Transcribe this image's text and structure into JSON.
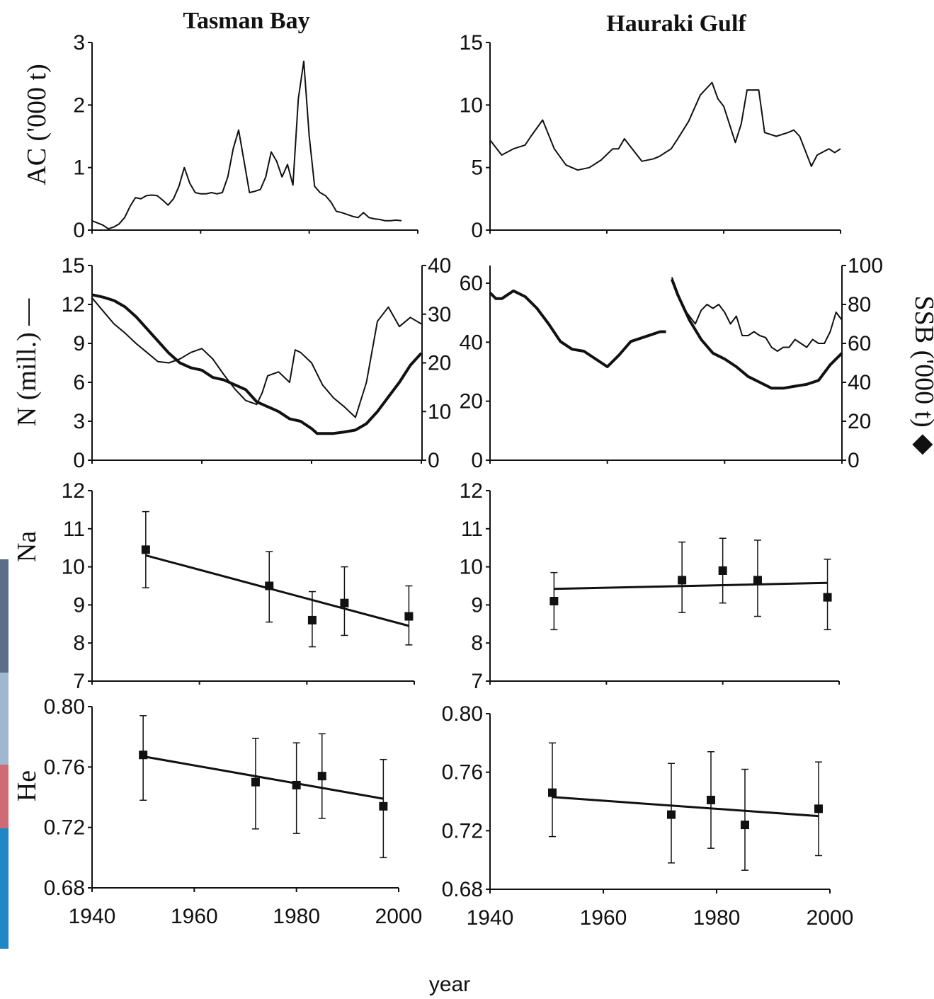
{
  "figure": {
    "titles": [
      "Tasman Bay",
      "Hauraki Gulf"
    ],
    "xlabel": "year",
    "ylabels": {
      "ac": "AC ('000 t)",
      "n": "N (mill.) —",
      "ssb": "SSB ('000 t) ◆",
      "na": "Na",
      "he": "He"
    },
    "decor": {
      "left_strip_colors": [
        "#5b6d88",
        "#9fb7d1",
        "#d06a74",
        "#1f86c7"
      ]
    }
  },
  "chart_data": [
    {
      "id": "tb_ac",
      "type": "line",
      "panel": "Tasman Bay",
      "ylabel": "AC ('000 t)",
      "ylim": [
        0,
        3
      ],
      "yticks": [
        0,
        1,
        2,
        3
      ],
      "xlim": [
        1940,
        2000
      ],
      "series": [
        {
          "x": [
            1940,
            1942,
            1943,
            1944,
            1945,
            1946,
            1947,
            1948,
            1949,
            1950,
            1951,
            1952,
            1953,
            1954,
            1955,
            1956,
            1957,
            1958,
            1959,
            1960,
            1961,
            1962,
            1963,
            1964,
            1965,
            1966,
            1967,
            1968,
            1969,
            1970,
            1971,
            1972,
            1973,
            1974,
            1975,
            1976,
            1977,
            1978,
            1979,
            1980,
            1981,
            1982,
            1983,
            1984,
            1985,
            1986,
            1987,
            1988,
            1989,
            1990,
            1991,
            1992,
            1993,
            1994,
            1995,
            1996,
            1997
          ],
          "y": [
            0.15,
            0.08,
            0.02,
            0.05,
            0.1,
            0.2,
            0.38,
            0.52,
            0.5,
            0.55,
            0.56,
            0.55,
            0.48,
            0.4,
            0.5,
            0.7,
            1.0,
            0.75,
            0.6,
            0.58,
            0.58,
            0.6,
            0.58,
            0.6,
            0.85,
            1.3,
            1.6,
            1.1,
            0.6,
            0.62,
            0.65,
            0.85,
            1.25,
            1.1,
            0.85,
            1.05,
            0.72,
            2.1,
            2.7,
            1.5,
            0.7,
            0.6,
            0.55,
            0.45,
            0.3,
            0.28,
            0.25,
            0.22,
            0.2,
            0.28,
            0.2,
            0.18,
            0.17,
            0.15,
            0.15,
            0.16,
            0.15
          ]
        }
      ]
    },
    {
      "id": "hg_ac",
      "type": "line",
      "panel": "Hauraki Gulf",
      "ylim": [
        0,
        15
      ],
      "yticks": [
        0,
        5,
        10,
        15
      ],
      "xlim": [
        1940,
        2000
      ],
      "series": [
        {
          "x": [
            1940,
            1942,
            1944,
            1946,
            1947,
            1949,
            1951,
            1953,
            1955,
            1957,
            1959,
            1961,
            1962,
            1963,
            1964,
            1966,
            1968,
            1969,
            1970,
            1971,
            1972,
            1974,
            1976,
            1978,
            1979,
            1980,
            1982,
            1983,
            1984,
            1986,
            1987,
            1989,
            1991,
            1992,
            1993,
            1995,
            1996,
            1998,
            1999,
            2000
          ],
          "y": [
            7.2,
            6.0,
            6.5,
            6.8,
            7.5,
            8.8,
            6.5,
            5.2,
            4.8,
            5.0,
            5.6,
            6.5,
            6.5,
            7.3,
            6.7,
            5.5,
            5.7,
            5.9,
            6.2,
            6.5,
            7.2,
            8.7,
            10.8,
            11.8,
            10.5,
            9.9,
            7.0,
            8.5,
            11.2,
            11.2,
            7.8,
            7.5,
            7.8,
            8.0,
            7.5,
            5.1,
            6.0,
            6.5,
            6.2,
            6.5
          ]
        }
      ]
    },
    {
      "id": "tb_n_ssb",
      "type": "line",
      "panel": "Tasman Bay",
      "ylabel_left": "N (mill.) —",
      "ylim_left": [
        0,
        15
      ],
      "yticks_left": [
        0,
        3,
        6,
        9,
        12,
        15
      ],
      "ylim_right": [
        0,
        40
      ],
      "yticks_right": [
        0,
        10,
        20,
        30,
        40
      ],
      "xlim": [
        1940,
        2000
      ],
      "series": [
        {
          "name": "N",
          "axis": "left",
          "x": [
            1940,
            1942,
            1944,
            1946,
            1948,
            1950,
            1952,
            1954,
            1956,
            1958,
            1960,
            1962,
            1964,
            1966,
            1968,
            1970,
            1971,
            1972,
            1974,
            1976,
            1977,
            1978,
            1980,
            1982,
            1984,
            1986,
            1988,
            1990,
            1992,
            1994,
            1996,
            1998,
            2000
          ],
          "y": [
            12.5,
            11.5,
            10.5,
            9.8,
            9.0,
            8.3,
            7.6,
            7.5,
            7.8,
            8.3,
            8.6,
            7.8,
            6.6,
            5.5,
            4.6,
            4.3,
            5.2,
            6.5,
            6.8,
            6.0,
            8.5,
            8.3,
            7.5,
            5.8,
            4.8,
            4.1,
            3.3,
            6.0,
            10.7,
            11.8,
            10.3,
            11.0,
            10.5
          ]
        },
        {
          "name": "SSB",
          "axis": "right",
          "x": [
            1940,
            1942,
            1944,
            1946,
            1948,
            1950,
            1952,
            1954,
            1956,
            1958,
            1960,
            1962,
            1964,
            1966,
            1968,
            1970,
            1972,
            1974,
            1976,
            1978,
            1980,
            1981,
            1982,
            1984,
            1986,
            1988,
            1990,
            1992,
            1994,
            1996,
            1998,
            2000
          ],
          "y": [
            34.0,
            33.5,
            32.8,
            31.5,
            29.5,
            27.0,
            24.5,
            22.0,
            20.0,
            19.0,
            18.5,
            17.0,
            16.5,
            15.5,
            14.5,
            12.0,
            11.0,
            10.0,
            8.5,
            8.0,
            6.5,
            5.5,
            5.5,
            5.5,
            5.8,
            6.2,
            7.5,
            10.0,
            13.0,
            16.0,
            19.5,
            22.0
          ]
        }
      ]
    },
    {
      "id": "hg_n_ssb",
      "type": "line",
      "panel": "Hauraki Gulf",
      "ylim_left": [
        0,
        66
      ],
      "yticks_left": [
        0,
        20,
        40,
        60
      ],
      "ylabel_right": "SSB ('000 t) ◆",
      "ylim_right": [
        0,
        100
      ],
      "yticks_right": [
        0,
        20,
        40,
        60,
        80,
        100
      ],
      "xlim": [
        1940,
        2000
      ],
      "series": [
        {
          "name": "SSB segment 1",
          "axis": "right",
          "x": [
            1940,
            1941,
            1942,
            1944,
            1946,
            1948,
            1950,
            1952,
            1954,
            1956,
            1958,
            1960,
            1962,
            1964,
            1966,
            1968,
            1969,
            1970
          ],
          "y": [
            86,
            83,
            83,
            87,
            84,
            78,
            70,
            61,
            57,
            56,
            52,
            48,
            54,
            61,
            63,
            65,
            66,
            66
          ]
        },
        {
          "name": "N",
          "axis": "right",
          "x": [
            1971,
            1972,
            1973,
            1974,
            1975,
            1976,
            1977,
            1978,
            1979,
            1980,
            1981,
            1982,
            1983,
            1984,
            1985,
            1986,
            1987,
            1988,
            1989,
            1990,
            1991,
            1992,
            1993,
            1994,
            1995,
            1996,
            1997,
            1998,
            1999,
            2000
          ],
          "y": [
            94,
            86,
            78,
            74,
            70,
            77,
            80,
            78,
            80,
            76,
            70,
            74,
            64,
            64,
            66,
            64,
            63,
            58,
            56,
            58,
            58,
            62,
            60,
            58,
            62,
            60,
            60,
            66,
            76,
            72
          ]
        },
        {
          "name": "SSB segment 2",
          "axis": "right",
          "x": [
            1971,
            1972,
            1974,
            1976,
            1978,
            1980,
            1982,
            1984,
            1986,
            1988,
            1990,
            1992,
            1994,
            1996,
            1998,
            2000
          ],
          "y": [
            93,
            85,
            72,
            62,
            55,
            52,
            48,
            43,
            40,
            37,
            37,
            38,
            39,
            41,
            49,
            55
          ]
        }
      ]
    },
    {
      "id": "tb_na",
      "type": "scatter",
      "panel": "Tasman Bay",
      "ylabel": "Na",
      "ylim": [
        7,
        12
      ],
      "yticks": [
        7,
        8,
        9,
        10,
        11,
        12
      ],
      "xlim": [
        1940,
        2000
      ],
      "points": [
        {
          "x": 1950,
          "y": 10.45,
          "lo": 9.45,
          "hi": 11.45
        },
        {
          "x": 1973,
          "y": 9.5,
          "lo": 8.55,
          "hi": 10.4
        },
        {
          "x": 1981,
          "y": 8.6,
          "lo": 7.9,
          "hi": 9.35
        },
        {
          "x": 1987,
          "y": 9.05,
          "lo": 8.2,
          "hi": 10.0
        },
        {
          "x": 1999,
          "y": 8.7,
          "lo": 7.95,
          "hi": 9.5
        }
      ],
      "fit": {
        "x": [
          1950,
          1999
        ],
        "y": [
          10.3,
          8.45
        ]
      }
    },
    {
      "id": "hg_na",
      "type": "scatter",
      "panel": "Hauraki Gulf",
      "ylim": [
        7,
        12
      ],
      "yticks": [
        7,
        8,
        9,
        10,
        11,
        12
      ],
      "xlim": [
        1940,
        2000
      ],
      "points": [
        {
          "x": 1951,
          "y": 9.1,
          "lo": 8.35,
          "hi": 9.85
        },
        {
          "x": 1973,
          "y": 9.65,
          "lo": 8.8,
          "hi": 10.65
        },
        {
          "x": 1980,
          "y": 9.9,
          "lo": 9.05,
          "hi": 10.75
        },
        {
          "x": 1986,
          "y": 9.65,
          "lo": 8.7,
          "hi": 10.7
        },
        {
          "x": 1998,
          "y": 9.2,
          "lo": 8.35,
          "hi": 10.2
        }
      ],
      "fit": {
        "x": [
          1951,
          1998
        ],
        "y": [
          9.42,
          9.58
        ]
      }
    },
    {
      "id": "tb_he",
      "type": "scatter",
      "panel": "Tasman Bay",
      "ylabel": "He",
      "ylim": [
        0.68,
        0.8
      ],
      "yticks": [
        0.68,
        0.72,
        0.76,
        0.8
      ],
      "xlim": [
        1940,
        2000
      ],
      "points": [
        {
          "x": 1950,
          "y": 0.768,
          "lo": 0.738,
          "hi": 0.794
        },
        {
          "x": 1972,
          "y": 0.75,
          "lo": 0.719,
          "hi": 0.779
        },
        {
          "x": 1980,
          "y": 0.748,
          "lo": 0.716,
          "hi": 0.776
        },
        {
          "x": 1985,
          "y": 0.754,
          "lo": 0.726,
          "hi": 0.782
        },
        {
          "x": 1997,
          "y": 0.734,
          "lo": 0.7,
          "hi": 0.765
        }
      ],
      "fit": {
        "x": [
          1950,
          1997
        ],
        "y": [
          0.767,
          0.739
        ]
      }
    },
    {
      "id": "hg_he",
      "type": "scatter",
      "panel": "Hauraki Gulf",
      "ylim": [
        0.68,
        0.8
      ],
      "yticks": [
        0.68,
        0.72,
        0.76,
        0.8
      ],
      "xlim": [
        1940,
        2000
      ],
      "points": [
        {
          "x": 1951,
          "y": 0.746,
          "lo": 0.716,
          "hi": 0.78
        },
        {
          "x": 1972,
          "y": 0.731,
          "lo": 0.698,
          "hi": 0.766
        },
        {
          "x": 1979,
          "y": 0.741,
          "lo": 0.708,
          "hi": 0.774
        },
        {
          "x": 1985,
          "y": 0.724,
          "lo": 0.693,
          "hi": 0.762
        },
        {
          "x": 1998,
          "y": 0.735,
          "lo": 0.703,
          "hi": 0.767
        }
      ],
      "fit": {
        "x": [
          1951,
          1998
        ],
        "y": [
          0.743,
          0.73
        ]
      }
    }
  ]
}
